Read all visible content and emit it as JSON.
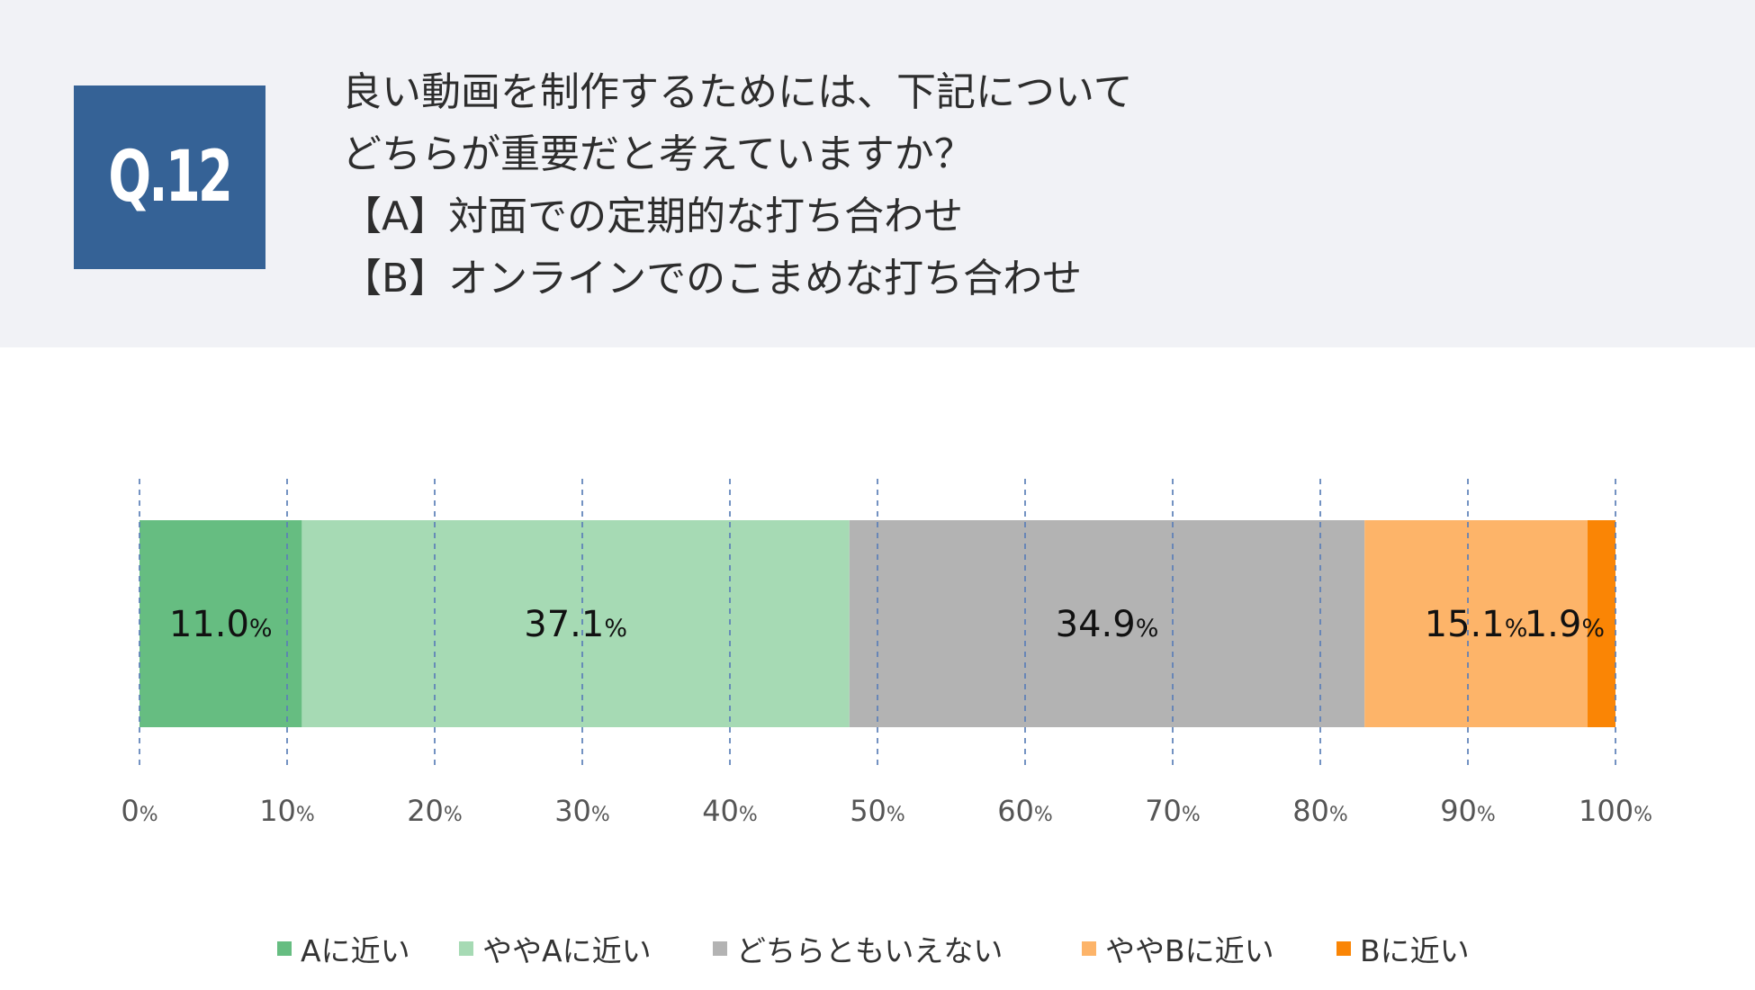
{
  "header": {
    "q_label": "Q.12",
    "question_lines": [
      "良い動画を制作するためには、下記について",
      "どちらが重要だと考えていますか？",
      "【A】対面での定期的な打ち合わせ",
      "【B】オンラインでのこまめな打ち合わせ"
    ]
  },
  "colors": {
    "header_bg": "#f1f2f6",
    "q_box": "#356296",
    "grid": "#5b7fb8"
  },
  "chart_data": {
    "type": "bar",
    "orientation": "horizontal-stacked-100",
    "xlim": [
      0,
      100
    ],
    "x_ticks": [
      0,
      10,
      20,
      30,
      40,
      50,
      60,
      70,
      80,
      90,
      100
    ],
    "tick_unit": "%",
    "grid": "vertical-dashed",
    "legend_position": "bottom",
    "series": [
      {
        "name": "Aに近い",
        "value": 11.0,
        "label": "11.0",
        "color": "#66bd81"
      },
      {
        "name": "ややAに近い",
        "value": 37.1,
        "label": "37.1",
        "color": "#a6dab4"
      },
      {
        "name": "どちらともいえない",
        "value": 34.9,
        "label": "34.9",
        "color": "#b3b3b3"
      },
      {
        "name": "ややBに近い",
        "value": 15.1,
        "label": "15.1",
        "color": "#fdb469"
      },
      {
        "name": "Bに近い",
        "value": 1.9,
        "label": "1.9",
        "color": "#fa8505"
      }
    ]
  }
}
